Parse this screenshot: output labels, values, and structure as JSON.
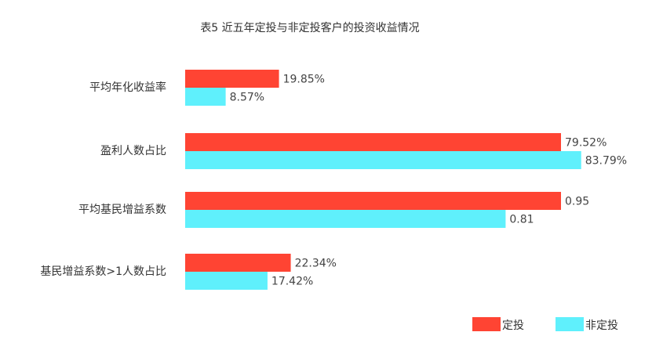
{
  "chart_data": {
    "type": "bar",
    "orientation": "horizontal",
    "title": "表5 近五年定投与非定投客户的投资收益情况",
    "categories": [
      "平均年化收益率",
      "盈利人数占比",
      "平均基民增益系数",
      "基民增益系数>1人数占比"
    ],
    "series": [
      {
        "name": "定投",
        "color": "#ff4433",
        "values": [
          19.85,
          79.52,
          0.95,
          22.34
        ],
        "labels": [
          "19.85%",
          "79.52%",
          "0.95",
          "22.34%"
        ],
        "bar_scale": [
          19.85,
          79.52,
          79.52,
          22.34
        ]
      },
      {
        "name": "非定投",
        "color": "#5ff0fc",
        "values": [
          8.57,
          83.79,
          0.81,
          17.42
        ],
        "labels": [
          "8.57%",
          "83.79%",
          "0.81",
          "17.42%"
        ],
        "bar_scale": [
          8.57,
          83.79,
          67.8,
          17.42
        ]
      }
    ],
    "legend": "bottom-right",
    "grid": false
  }
}
